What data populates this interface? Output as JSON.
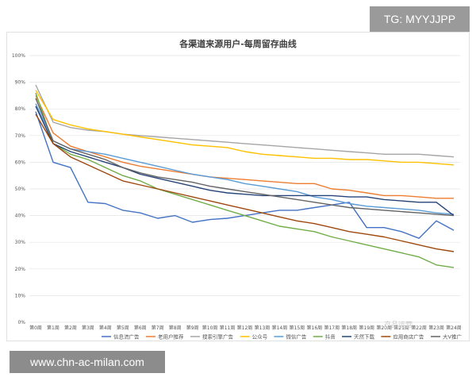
{
  "overlay": {
    "tag_label": "TG: MYYJJPP",
    "watermark_label": "www.chn-ac-milan.com",
    "wechat_watermark": "产品运营"
  },
  "chart_data": {
    "type": "line",
    "title": "各渠道来源用户-每周留存曲线",
    "xlabel": "",
    "ylabel": "",
    "ylim": [
      0,
      100
    ],
    "yticks": [
      "0%",
      "10%",
      "20%",
      "30%",
      "40%",
      "50%",
      "60%",
      "70%",
      "80%",
      "90%",
      "100%"
    ],
    "grid": true,
    "legend_position": "bottom",
    "x": [
      "第0周",
      "第1周",
      "第2周",
      "第3周",
      "第4周",
      "第5周",
      "第6周",
      "第7周",
      "第8周",
      "第9周",
      "第10周",
      "第11周",
      "第12周",
      "第13周",
      "第14周",
      "第15周",
      "第16周",
      "第17周",
      "第18周",
      "第19周",
      "第20周",
      "第21周",
      "第22周",
      "第23周",
      "第24周"
    ],
    "series": [
      {
        "name": "信息流广告",
        "color": "#4472c4",
        "values": [
          79,
          60,
          58,
          45,
          44.5,
          42,
          41,
          39,
          40,
          37.5,
          38.5,
          39,
          40,
          41,
          42,
          42,
          43,
          44,
          45,
          35.5,
          35.5,
          34,
          31.5,
          38,
          34.5
        ]
      },
      {
        "name": "老用户推荐",
        "color": "#ed7d31",
        "values": [
          85,
          71,
          66,
          64,
          62,
          60,
          58.5,
          57.5,
          56.5,
          55.5,
          54.5,
          54,
          53.5,
          53,
          52.5,
          52,
          52,
          50,
          49.5,
          48.5,
          47.5,
          47.5,
          47,
          46.5,
          46.5
        ]
      },
      {
        "name": "搜索引擎广告",
        "color": "#a5a5a5",
        "values": [
          89,
          75,
          73,
          72,
          71.5,
          70.5,
          70,
          69.5,
          69,
          68.5,
          68,
          67.5,
          67,
          66.5,
          66,
          65.5,
          65,
          64.5,
          64,
          63.5,
          63,
          63,
          63,
          62.5,
          62
        ]
      },
      {
        "name": "公众号",
        "color": "#ffc000",
        "values": [
          87,
          76,
          74,
          72.5,
          71.5,
          70.5,
          69.5,
          68.5,
          67.5,
          66.5,
          66,
          65.5,
          64,
          63,
          62.5,
          62,
          61.5,
          61.5,
          61,
          61,
          60.5,
          60,
          60,
          59.5,
          59
        ]
      },
      {
        "name": "微信广告",
        "color": "#5b9bd5",
        "values": [
          82,
          68,
          65,
          64,
          63,
          61.5,
          60,
          58.5,
          57,
          55.5,
          54.5,
          53.5,
          52,
          51,
          50,
          49,
          47,
          46,
          44.5,
          43.5,
          43,
          42.5,
          42,
          41,
          40.5
        ]
      },
      {
        "name": "抖音",
        "color": "#70ad47",
        "values": [
          86,
          67,
          63,
          61,
          58,
          55,
          53,
          50,
          48,
          46,
          44,
          42,
          40,
          38,
          36,
          35,
          34,
          32,
          30.5,
          29,
          27.5,
          26,
          24.5,
          21.5,
          20.5
        ]
      },
      {
        "name": "天然下载",
        "color": "#264478",
        "values": [
          81,
          67,
          64,
          62,
          60,
          58,
          55.5,
          54,
          52.5,
          51,
          49.5,
          48.5,
          48,
          47.5,
          47.5,
          47.5,
          47.5,
          47.5,
          47,
          47,
          46,
          45.5,
          45,
          45,
          40
        ]
      },
      {
        "name": "应用商店广告",
        "color": "#9e480e",
        "values": [
          78,
          67,
          62,
          59,
          56,
          53,
          51.5,
          50,
          48.5,
          47,
          45.5,
          44,
          42.5,
          41,
          39.5,
          38,
          37,
          35.5,
          34,
          33,
          32,
          30.5,
          29,
          27.5,
          26.5
        ]
      },
      {
        "name": "大V推广",
        "color": "#636363",
        "values": [
          84,
          68,
          65,
          63,
          61,
          58,
          56,
          54.5,
          53.5,
          52.5,
          51,
          50,
          49,
          48,
          47,
          46,
          45,
          44,
          43,
          42.5,
          42,
          41.5,
          41,
          40.5,
          40
        ]
      }
    ]
  }
}
